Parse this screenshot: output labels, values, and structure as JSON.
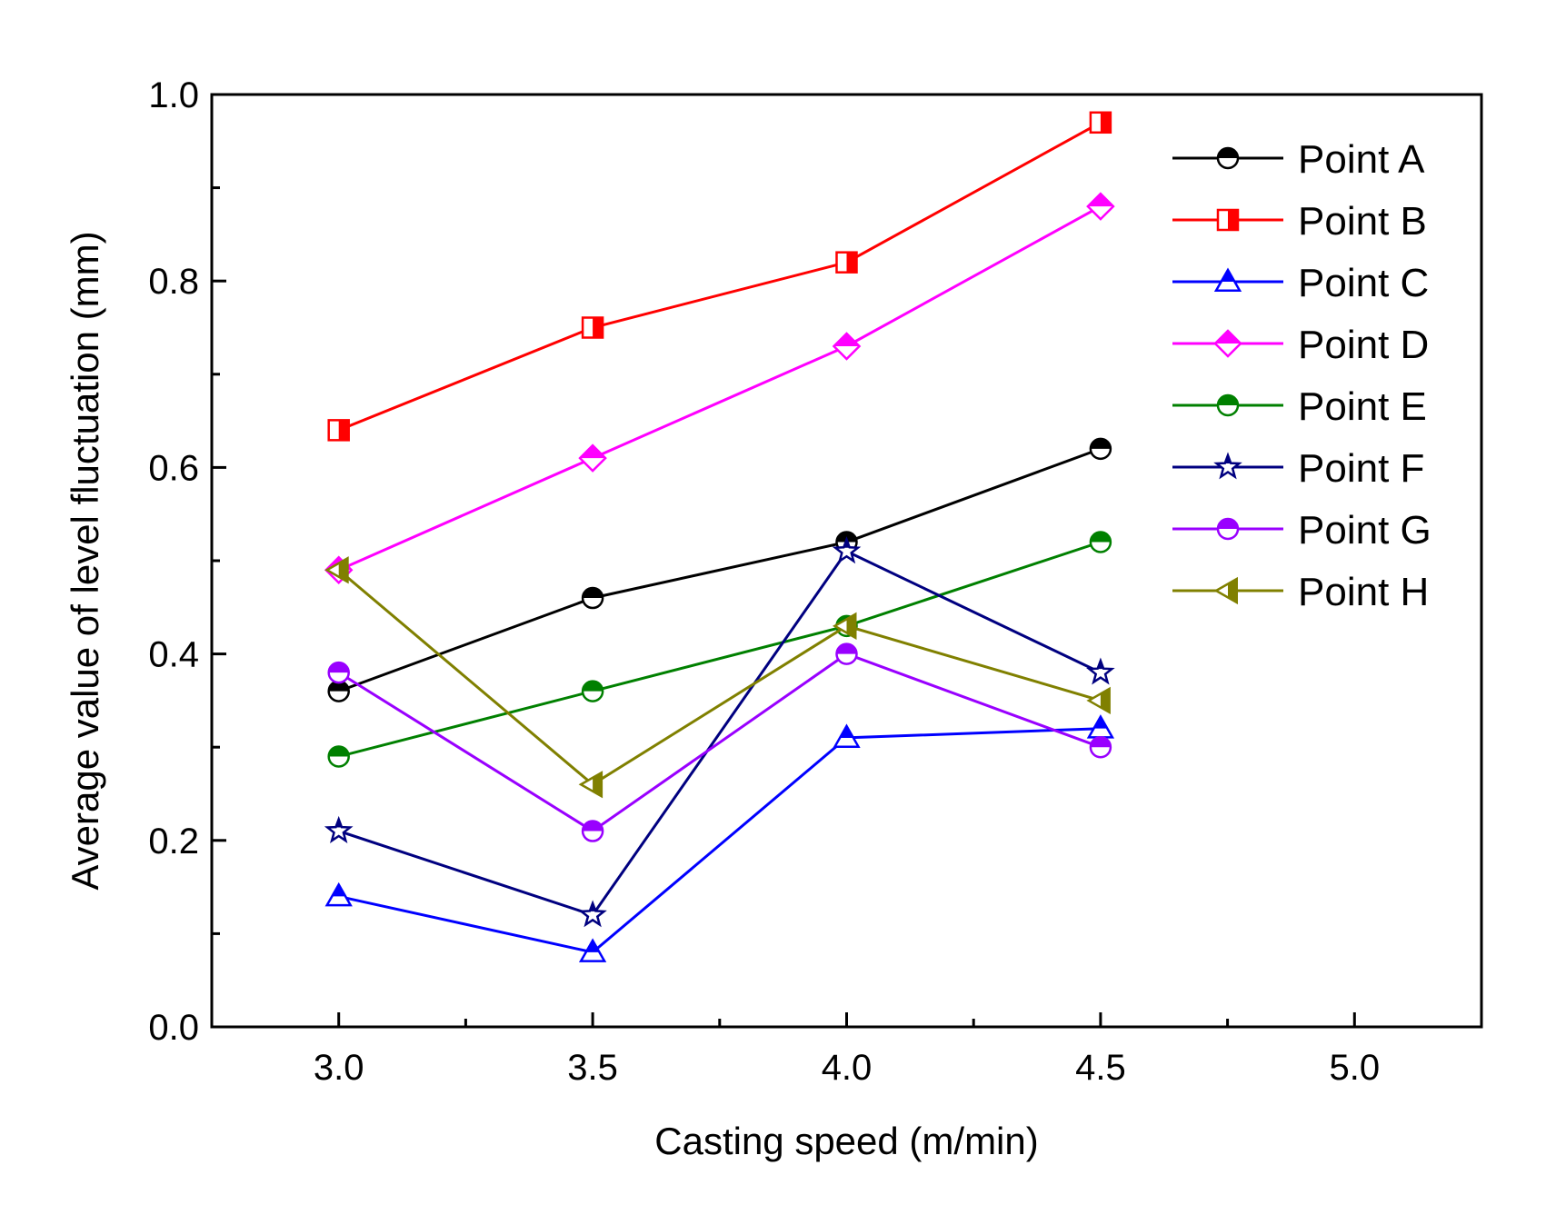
{
  "chart_data": {
    "type": "line",
    "title": "",
    "xlabel": "Casting speed (m/min)",
    "ylabel": "Average value of level fluctuation (mm)",
    "xlim": [
      2.75,
      5.25
    ],
    "ylim": [
      0.0,
      1.0
    ],
    "x_ticks": [
      "3.0",
      "3.5",
      "4.0",
      "4.5",
      "5.0"
    ],
    "y_ticks": [
      "0.0",
      "0.2",
      "0.4",
      "0.6",
      "0.8",
      "1.0"
    ],
    "legend_position": "top-right",
    "grid": false,
    "x": [
      3.0,
      3.5,
      4.0,
      4.5
    ],
    "series": [
      {
        "name": "Point A",
        "color": "#000000",
        "marker": "circle",
        "values": [
          0.36,
          0.46,
          0.52,
          0.62
        ]
      },
      {
        "name": "Point B",
        "color": "#ff0000",
        "marker": "square",
        "values": [
          0.64,
          0.75,
          0.82,
          0.97
        ]
      },
      {
        "name": "Point C",
        "color": "#0000ff",
        "marker": "triangle-up",
        "values": [
          0.14,
          0.08,
          0.31,
          0.32
        ]
      },
      {
        "name": "Point D",
        "color": "#ff00ff",
        "marker": "diamond",
        "values": [
          0.49,
          0.61,
          0.73,
          0.88
        ]
      },
      {
        "name": "Point E",
        "color": "#008000",
        "marker": "circle",
        "values": [
          0.29,
          0.36,
          0.43,
          0.52
        ]
      },
      {
        "name": "Point F",
        "color": "#000080",
        "marker": "star",
        "values": [
          0.21,
          0.12,
          0.51,
          0.38
        ]
      },
      {
        "name": "Point G",
        "color": "#9900ff",
        "marker": "circle-v",
        "values": [
          0.38,
          0.21,
          0.4,
          0.3
        ]
      },
      {
        "name": "Point H",
        "color": "#808000",
        "marker": "triangle-left",
        "values": [
          0.49,
          0.26,
          0.43,
          0.35
        ]
      }
    ]
  }
}
